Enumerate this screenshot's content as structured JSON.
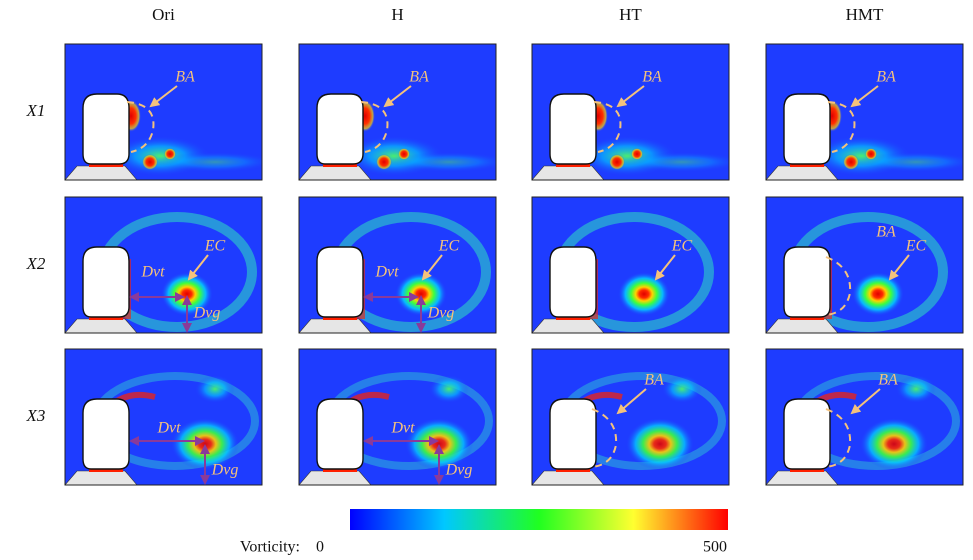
{
  "columns": [
    "Ori",
    "H",
    "HT",
    "HMT"
  ],
  "rows": [
    {
      "label": "X1",
      "cells": [
        {
          "annotations": [
            "BA"
          ]
        },
        {
          "annotations": [
            "BA"
          ]
        },
        {
          "annotations": [
            "BA"
          ]
        },
        {
          "annotations": [
            "BA"
          ]
        }
      ]
    },
    {
      "label": "X2",
      "cells": [
        {
          "annotations": [
            "Dvt",
            "EC",
            "Dvg"
          ]
        },
        {
          "annotations": [
            "Dvt",
            "EC",
            "Dvg"
          ]
        },
        {
          "annotations": [
            "EC"
          ]
        },
        {
          "annotations": [
            "BA",
            "EC"
          ]
        }
      ]
    },
    {
      "label": "X3",
      "cells": [
        {
          "annotations": [
            "Dvt",
            "Dvg"
          ]
        },
        {
          "annotations": [
            "Dvt",
            "Dvg"
          ]
        },
        {
          "annotations": [
            "BA"
          ]
        },
        {
          "annotations": [
            "BA"
          ]
        }
      ]
    }
  ],
  "colorbar": {
    "label": "Vorticity:",
    "min": 0,
    "max": 500
  }
}
